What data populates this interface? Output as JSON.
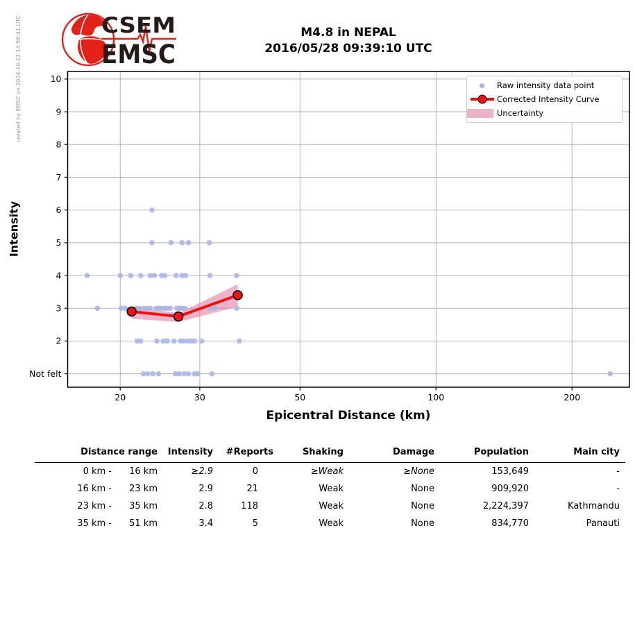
{
  "watermark": "created by EMSC on 2024-10-23 14:56:41 UTC",
  "logo": {
    "line1": "CSEM",
    "line2": "EMSC"
  },
  "title": {
    "line1": "M4.8 in NEPAL",
    "line2": "2016/05/28 09:39:10 UTC"
  },
  "chart_data": {
    "type": "scatter",
    "title": "M4.8 in NEPAL 2016/05/28 09:39:10 UTC",
    "xlabel": "Epicentral Distance (km)",
    "ylabel": "Intensity",
    "x_scale": "log",
    "x_ticks": [
      20,
      30,
      50,
      100,
      200
    ],
    "x_range": [
      15.3,
      268
    ],
    "y_range": [
      0.59,
      10.23
    ],
    "grid": true,
    "y_ticks": [
      {
        "value": 1,
        "label": "Not felt"
      },
      {
        "value": 2,
        "label": "2"
      },
      {
        "value": 3,
        "label": "3"
      },
      {
        "value": 4,
        "label": "4"
      },
      {
        "value": 5,
        "label": "5"
      },
      {
        "value": 6,
        "label": "6"
      },
      {
        "value": 7,
        "label": "7"
      },
      {
        "value": 8,
        "label": "8"
      },
      {
        "value": 9,
        "label": "9"
      },
      {
        "value": 10,
        "label": "10"
      }
    ],
    "legend": {
      "position": "upper right",
      "entries": [
        {
          "label": "Raw intensity data point",
          "marker": "dot"
        },
        {
          "label": "Corrected Intensity Curve",
          "marker": "line-with-circle"
        },
        {
          "label": "Uncertainty",
          "marker": "band"
        }
      ]
    },
    "raw_points": [
      {
        "d": 23.5,
        "i": 6
      },
      {
        "d": 23.5,
        "i": 5
      },
      {
        "d": 25.9,
        "i": 5
      },
      {
        "d": 27.4,
        "i": 5
      },
      {
        "d": 28.3,
        "i": 5
      },
      {
        "d": 31.5,
        "i": 5
      },
      {
        "d": 16.9,
        "i": 4
      },
      {
        "d": 20.0,
        "i": 4
      },
      {
        "d": 21.1,
        "i": 4
      },
      {
        "d": 22.2,
        "i": 4
      },
      {
        "d": 23.3,
        "i": 4
      },
      {
        "d": 23.8,
        "i": 4
      },
      {
        "d": 24.7,
        "i": 4
      },
      {
        "d": 25.1,
        "i": 4
      },
      {
        "d": 26.6,
        "i": 4
      },
      {
        "d": 27.4,
        "i": 4
      },
      {
        "d": 27.9,
        "i": 4
      },
      {
        "d": 31.6,
        "i": 4
      },
      {
        "d": 36.2,
        "i": 4
      },
      {
        "d": 17.8,
        "i": 3
      },
      {
        "d": 20.1,
        "i": 3
      },
      {
        "d": 20.5,
        "i": 3
      },
      {
        "d": 21.7,
        "i": 3
      },
      {
        "d": 22.1,
        "i": 3
      },
      {
        "d": 22.6,
        "i": 3
      },
      {
        "d": 23.0,
        "i": 3
      },
      {
        "d": 23.3,
        "i": 3
      },
      {
        "d": 24.0,
        "i": 3
      },
      {
        "d": 24.4,
        "i": 3
      },
      {
        "d": 24.7,
        "i": 3
      },
      {
        "d": 25.1,
        "i": 3
      },
      {
        "d": 25.4,
        "i": 3
      },
      {
        "d": 25.8,
        "i": 3
      },
      {
        "d": 26.7,
        "i": 3
      },
      {
        "d": 27.0,
        "i": 3
      },
      {
        "d": 27.4,
        "i": 3
      },
      {
        "d": 27.8,
        "i": 3
      },
      {
        "d": 31.5,
        "i": 3
      },
      {
        "d": 32.3,
        "i": 3
      },
      {
        "d": 36.2,
        "i": 3
      },
      {
        "d": 21.8,
        "i": 2
      },
      {
        "d": 22.2,
        "i": 2
      },
      {
        "d": 24.1,
        "i": 2
      },
      {
        "d": 24.9,
        "i": 2
      },
      {
        "d": 25.4,
        "i": 2
      },
      {
        "d": 26.3,
        "i": 2
      },
      {
        "d": 27.2,
        "i": 2
      },
      {
        "d": 27.6,
        "i": 2
      },
      {
        "d": 28.2,
        "i": 2
      },
      {
        "d": 28.7,
        "i": 2
      },
      {
        "d": 29.2,
        "i": 2
      },
      {
        "d": 30.3,
        "i": 2
      },
      {
        "d": 36.7,
        "i": 2
      },
      {
        "d": 22.5,
        "i": 1
      },
      {
        "d": 23.0,
        "i": 1
      },
      {
        "d": 23.6,
        "i": 1
      },
      {
        "d": 24.3,
        "i": 1
      },
      {
        "d": 26.5,
        "i": 1
      },
      {
        "d": 27.0,
        "i": 1
      },
      {
        "d": 27.7,
        "i": 1
      },
      {
        "d": 28.3,
        "i": 1
      },
      {
        "d": 29.2,
        "i": 1
      },
      {
        "d": 29.7,
        "i": 1
      },
      {
        "d": 31.9,
        "i": 1
      },
      {
        "d": 243,
        "i": 1
      }
    ],
    "corrected_curve": [
      {
        "distance_km": 21.2,
        "intensity": 2.9
      },
      {
        "distance_km": 26.9,
        "intensity": 2.75
      },
      {
        "distance_km": 36.4,
        "intensity": 3.4
      }
    ],
    "uncertainty_band": [
      {
        "distance_km": 21.2,
        "lower": 2.68,
        "upper": 3.05
      },
      {
        "distance_km": 26.9,
        "lower": 2.58,
        "upper": 2.85
      },
      {
        "distance_km": 36.4,
        "lower": 3.05,
        "upper": 3.73
      }
    ]
  },
  "colors": {
    "raw_point": "#aab6e8",
    "curve": "#ee1212",
    "curve_marker_edge": "#000000",
    "uncertainty": "#e0759f",
    "grid": "#b3b3b3",
    "axis": "#000000",
    "logo_red": "#e32119",
    "logo_text": "#241a18",
    "watermark": "#999999"
  },
  "table": {
    "headers": [
      "Distance range",
      "Intensity",
      "#Reports",
      "Shaking",
      "Damage",
      "Population",
      "Main city"
    ],
    "rows": [
      {
        "range_from": "0 km -",
        "range_to": "16 km",
        "intensity": "≥2.9",
        "reports": "0",
        "shaking": "≥Weak",
        "damage": "≥None",
        "population": "153,649",
        "main_city": "-"
      },
      {
        "range_from": "16 km -",
        "range_to": "23 km",
        "intensity": "2.9",
        "reports": "21",
        "shaking": "Weak",
        "damage": "None",
        "population": "909,920",
        "main_city": "-"
      },
      {
        "range_from": "23 km -",
        "range_to": "35 km",
        "intensity": "2.8",
        "reports": "118",
        "shaking": "Weak",
        "damage": "None",
        "population": "2,224,397",
        "main_city": "Kathmandu"
      },
      {
        "range_from": "35 km -",
        "range_to": "51 km",
        "intensity": "3.4",
        "reports": "5",
        "shaking": "Weak",
        "damage": "None",
        "population": "834,770",
        "main_city": "Panauti"
      }
    ]
  }
}
